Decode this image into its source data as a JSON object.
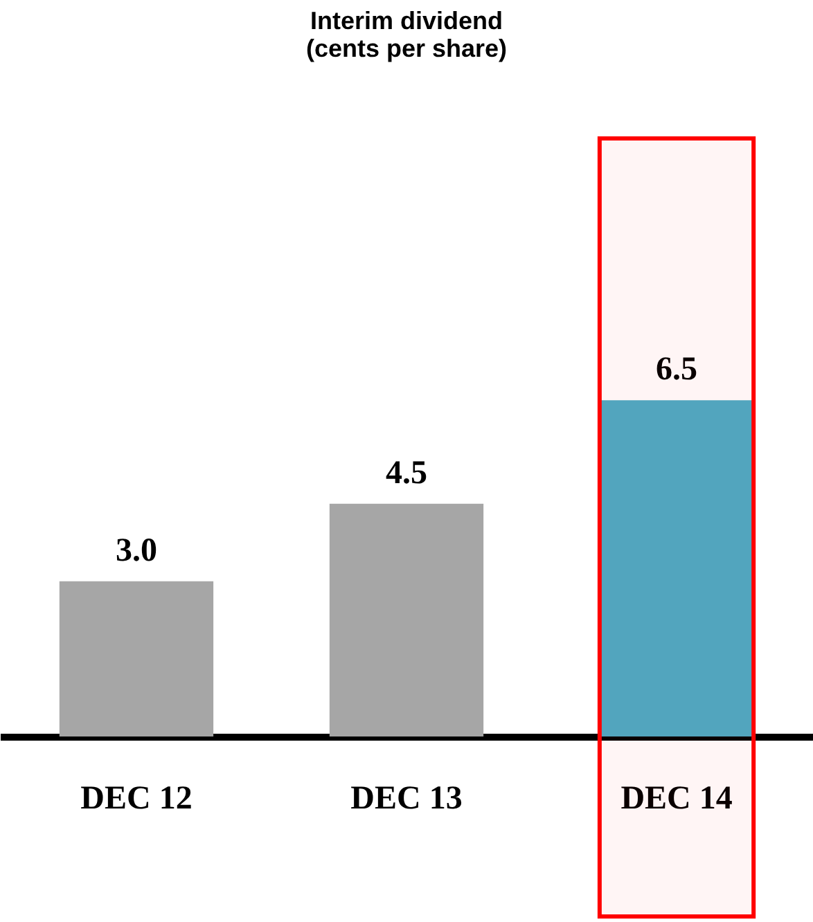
{
  "chart_data": {
    "type": "bar",
    "title": [
      "Interim dividend",
      "(cents per share)"
    ],
    "categories": [
      "DEC 12",
      "DEC 13",
      "DEC 14"
    ],
    "values": [
      3.0,
      4.5,
      6.5
    ],
    "colors": [
      "#a6a6a6",
      "#a6a6a6",
      "#4bacc6"
    ],
    "value_labels": [
      "3.0",
      "4.5",
      "6.5"
    ],
    "bands": [
      {
        "axis": "x",
        "from": "DEC 14",
        "to": "DEC 14",
        "color": "#ff0000"
      }
    ],
    "grid": false
  }
}
